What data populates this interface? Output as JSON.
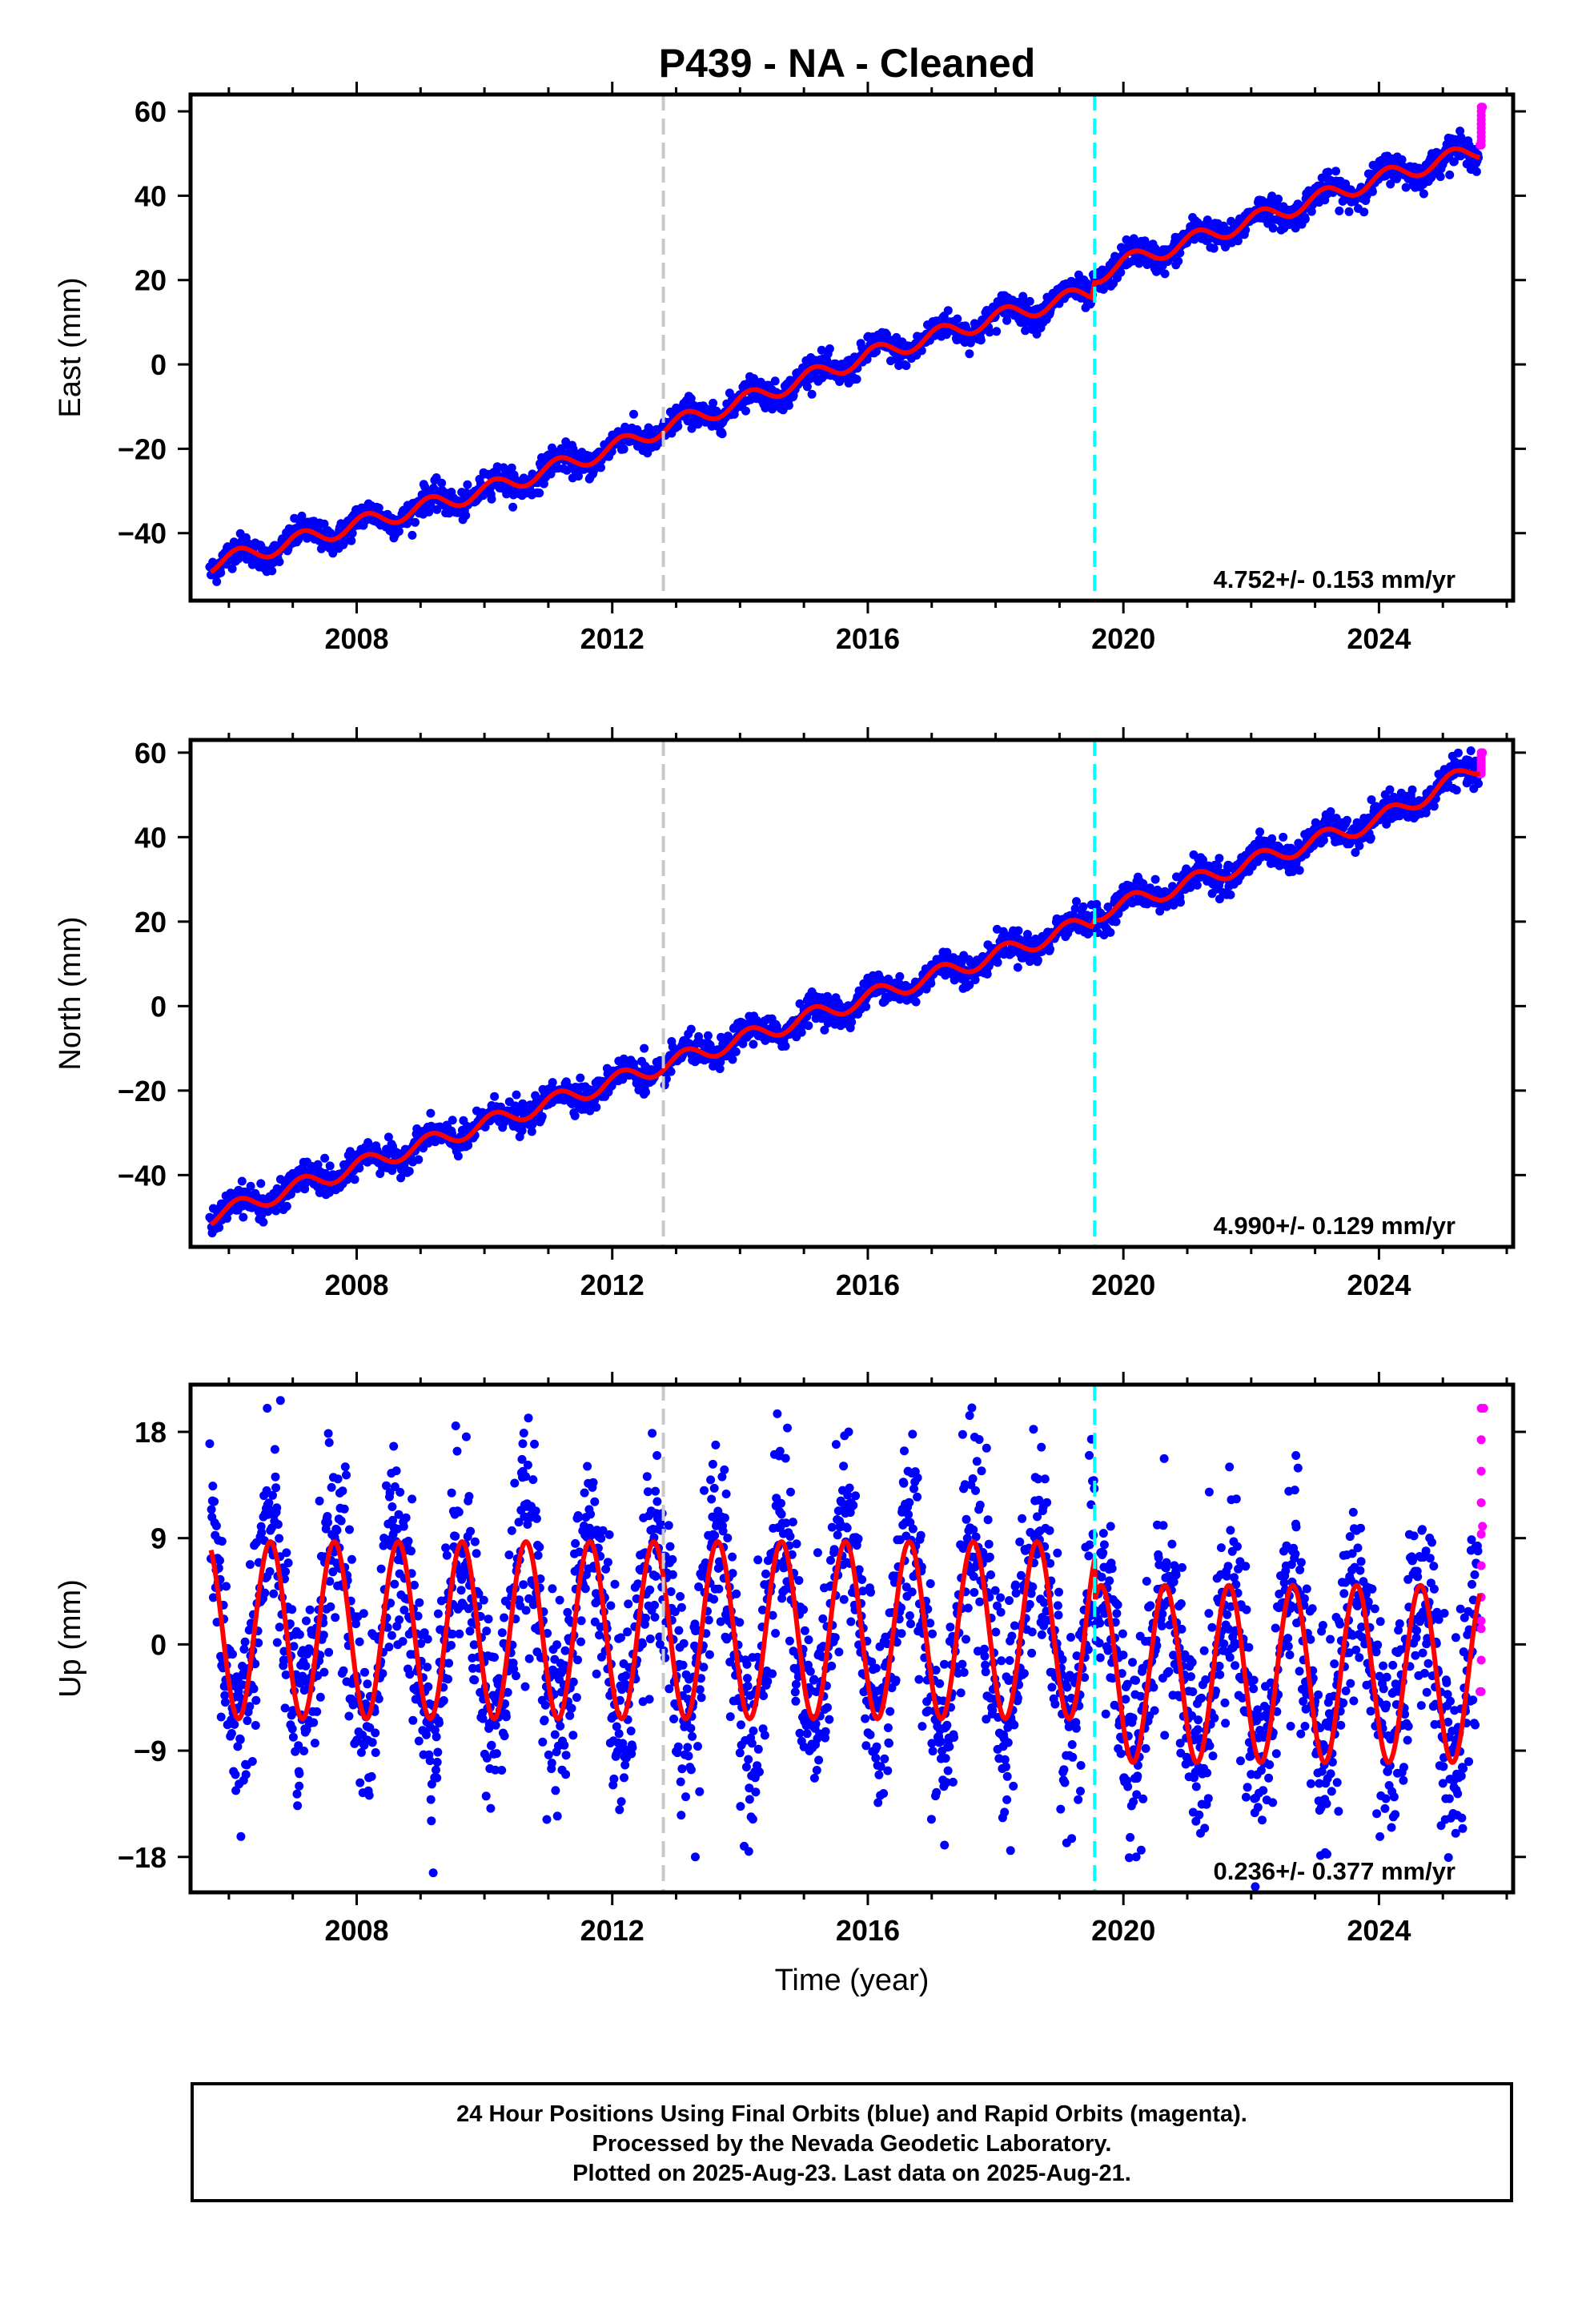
{
  "title": "P439  - NA - Cleaned",
  "colors": {
    "final": "#0000ff",
    "rapid": "#ff00ff",
    "model": "#ff0000",
    "gray_line": "#c8c8c8",
    "cyan_line": "#00ffff"
  },
  "chart_data": [
    {
      "type": "scatter",
      "component": "east",
      "ylabel": "East (mm)",
      "xlim": [
        2005.4,
        2026.1
      ],
      "ylim": [
        -56,
        64
      ],
      "yticks": [
        -40,
        -20,
        0,
        20,
        40,
        60
      ],
      "xticks": [
        2008,
        2012,
        2016,
        2020,
        2024
      ],
      "rate_label": "4.752+/- 0.153 mm/yr",
      "vlines": [
        {
          "x": 2012.8,
          "color": "gray"
        },
        {
          "x": 2019.55,
          "color": "cyan"
        }
      ],
      "series": [
        {
          "kind": "model",
          "x": [
            2005.7,
            2008.0,
            2010.0,
            2012.0,
            2012.8,
            2014.0,
            2016.0,
            2018.0,
            2019.5,
            2019.55,
            2020.0,
            2022.0,
            2024.0,
            2025.6
          ],
          "y": [
            -47.5,
            -38,
            -30,
            -20,
            -15,
            -9,
            2,
            11,
            17,
            21,
            24,
            34,
            44,
            51
          ]
        },
        {
          "kind": "final",
          "x": [
            2005.7,
            2006.5,
            2007.5,
            2008.5,
            2009.5,
            2010.5,
            2011.5,
            2012.5,
            2013.5,
            2014.5,
            2015.5,
            2016.5,
            2017.5,
            2018.5,
            2019.5,
            2020.5,
            2021.5,
            2022.5,
            2023.5,
            2024.5,
            2025.5
          ],
          "y": [
            -48,
            -43,
            -40,
            -36,
            -32,
            -28,
            -24,
            -18,
            -12,
            -6,
            -2,
            4,
            9,
            13,
            18,
            26,
            31,
            36,
            41,
            46,
            51
          ]
        },
        {
          "kind": "rapid",
          "x": [
            2025.58,
            2025.6,
            2025.62
          ],
          "y": [
            52,
            57,
            61
          ]
        }
      ]
    },
    {
      "type": "scatter",
      "component": "north",
      "ylabel": "North (mm)",
      "xlim": [
        2005.4,
        2026.1
      ],
      "ylim": [
        -57,
        63
      ],
      "yticks": [
        -40,
        -20,
        0,
        20,
        40,
        60
      ],
      "xticks": [
        2008,
        2012,
        2016,
        2020,
        2024
      ],
      "rate_label": "4.990+/- 0.129 mm/yr",
      "vlines": [
        {
          "x": 2012.8,
          "color": "gray"
        },
        {
          "x": 2019.55,
          "color": "cyan"
        }
      ],
      "series": [
        {
          "kind": "model",
          "x": [
            2005.7,
            2008.0,
            2010.0,
            2012.0,
            2012.8,
            2014.0,
            2016.0,
            2018.0,
            2019.5,
            2019.55,
            2020.0,
            2022.0,
            2024.0,
            2025.6
          ],
          "y": [
            -50,
            -38,
            -28,
            -18,
            -14,
            -8,
            2,
            12,
            20,
            22,
            24,
            34,
            44,
            57
          ]
        },
        {
          "kind": "final",
          "x": [
            2005.7,
            2006.5,
            2007.5,
            2008.5,
            2009.5,
            2010.5,
            2011.5,
            2012.5,
            2013.5,
            2014.5,
            2015.5,
            2016.5,
            2017.5,
            2018.5,
            2019.5,
            2020.5,
            2021.5,
            2022.5,
            2023.5,
            2024.5,
            2025.5
          ],
          "y": [
            -50,
            -42,
            -36,
            -31,
            -27,
            -21,
            -17,
            -10,
            -7,
            -3,
            2,
            7,
            12,
            17,
            24,
            30,
            35,
            40,
            44,
            50,
            56
          ]
        },
        {
          "kind": "rapid",
          "x": [
            2025.58,
            2025.6,
            2025.62
          ],
          "y": [
            55,
            58,
            60
          ]
        }
      ]
    },
    {
      "type": "scatter",
      "component": "up",
      "ylabel": "Up (mm)",
      "xlabel": "Time (year)",
      "xlim": [
        2005.4,
        2026.1
      ],
      "ylim": [
        -21,
        22
      ],
      "yticks": [
        -18,
        -9,
        0,
        9,
        18
      ],
      "xticks": [
        2008,
        2012,
        2016,
        2020,
        2024
      ],
      "rate_label": "0.236+/- 0.377 mm/yr",
      "vlines": [
        {
          "x": 2012.8,
          "color": "gray"
        },
        {
          "x": 2019.55,
          "color": "cyan"
        }
      ],
      "series": [
        {
          "kind": "model",
          "x": [
            2005.7,
            2006.2,
            2006.7,
            2007.2,
            2007.7,
            2012.2,
            2012.7,
            2013.2,
            2019.2,
            2019.7,
            2020.2,
            2024.7,
            2025.2,
            2025.6
          ],
          "y": [
            8,
            -6,
            9,
            -6,
            9,
            -5,
            9,
            -7,
            -6,
            5,
            -10,
            6,
            -9,
            5
          ]
        },
        {
          "kind": "final",
          "x": [
            2005.7,
            2006.6,
            2007.1,
            2010.6,
            2012.7,
            2013.3,
            2015.7,
            2017.2,
            2019.8,
            2020.2,
            2022.7,
            2025.2
          ],
          "y": [
            17,
            20,
            -12,
            17,
            16,
            -18,
            18,
            -17,
            10,
            -18,
            16,
            -16
          ]
        },
        {
          "kind": "rapid",
          "x": [
            2025.58,
            2025.6,
            2025.62,
            2025.64
          ],
          "y": [
            -4,
            2,
            10,
            20
          ]
        }
      ]
    }
  ],
  "footer": {
    "line1": "24 Hour Positions Using Final Orbits (blue) and Rapid Orbits (magenta).",
    "line2": "Processed by the Nevada Geodetic Laboratory.",
    "line3": "Plotted on 2025-Aug-23. Last data on 2025-Aug-21."
  }
}
